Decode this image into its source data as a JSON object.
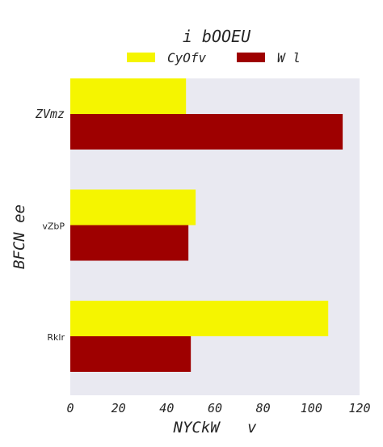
{
  "chart_data": {
    "type": "bar",
    "orientation": "horizontal",
    "title": "i bOOEU",
    "xlabel": "NYCkW   v",
    "ylabel": "BFCN ee",
    "categories": [
      "ZVmz",
      "vZbP",
      "Rklr"
    ],
    "series": [
      {
        "name": "CyOfv",
        "color": "#f5f500",
        "values": [
          48,
          52,
          107
        ]
      },
      {
        "name": "W l",
        "color": "#9e0000",
        "values": [
          113,
          49,
          50
        ]
      }
    ],
    "xlim": [
      0,
      120
    ],
    "xticks": [
      0,
      20,
      40,
      60,
      80,
      100,
      120
    ],
    "grid": false,
    "legend_position": "top-center",
    "plot_background": "#e9e9f1"
  }
}
